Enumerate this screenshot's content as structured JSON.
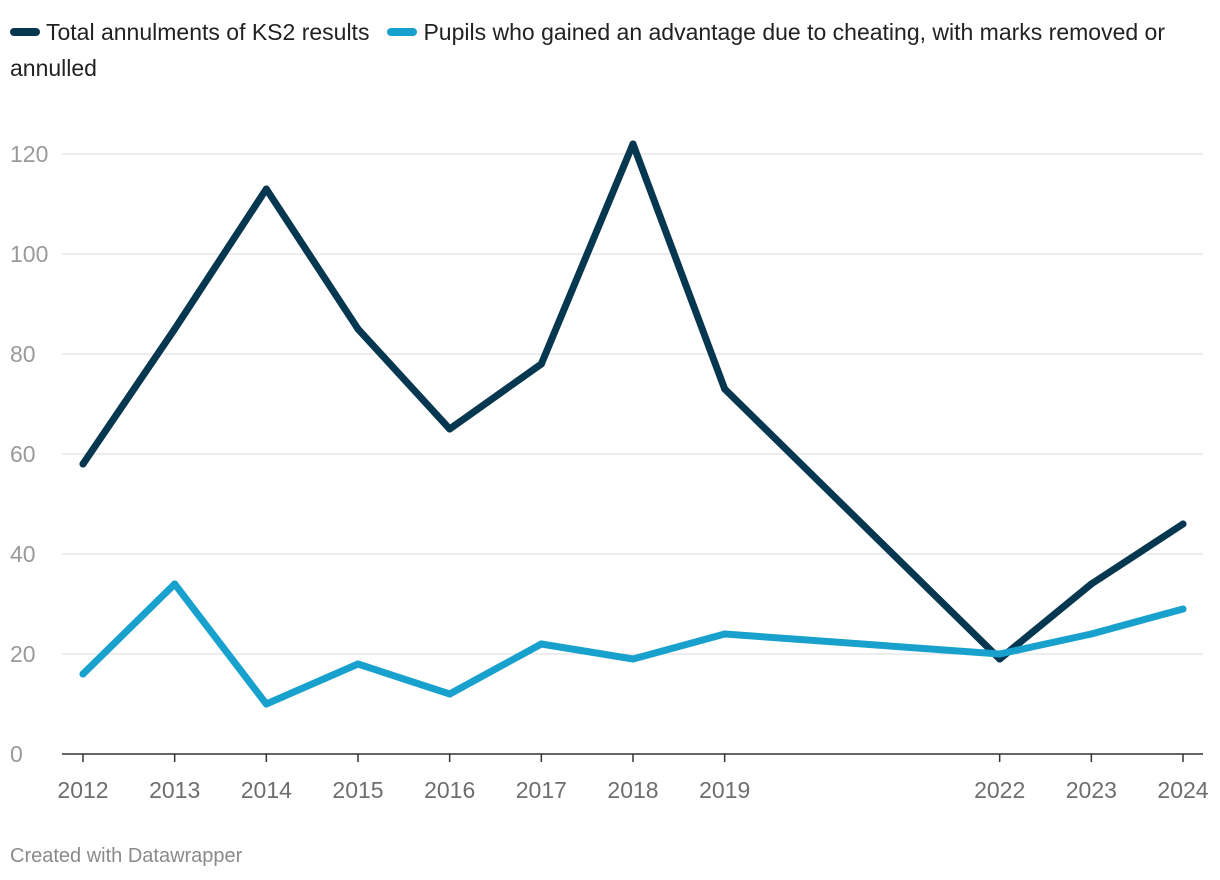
{
  "chart_data": {
    "type": "line",
    "x": [
      "2012",
      "2013",
      "2014",
      "2015",
      "2016",
      "2017",
      "2018",
      "2019",
      "2022",
      "2023",
      "2024"
    ],
    "x_numeric": [
      2012,
      2013,
      2014,
      2015,
      2016,
      2017,
      2018,
      2019,
      2022,
      2023,
      2024
    ],
    "series": [
      {
        "name": "Total annulments of KS2 results",
        "color": "#063750",
        "values": [
          58,
          85,
          113,
          85,
          65,
          78,
          122,
          73,
          19,
          34,
          46
        ]
      },
      {
        "name": "Pupils who gained an advantage due to cheating, with marks removed or annulled",
        "color": "#18a1cd",
        "values": [
          16,
          34,
          10,
          18,
          12,
          22,
          19,
          24,
          20,
          24,
          29
        ]
      }
    ],
    "y_ticks": [
      "0",
      "20",
      "40",
      "60",
      "80",
      "100",
      "120"
    ],
    "ylim": [
      0,
      120
    ],
    "grid": true,
    "legend_position": "top-left"
  },
  "credit": "Created with Datawrapper"
}
